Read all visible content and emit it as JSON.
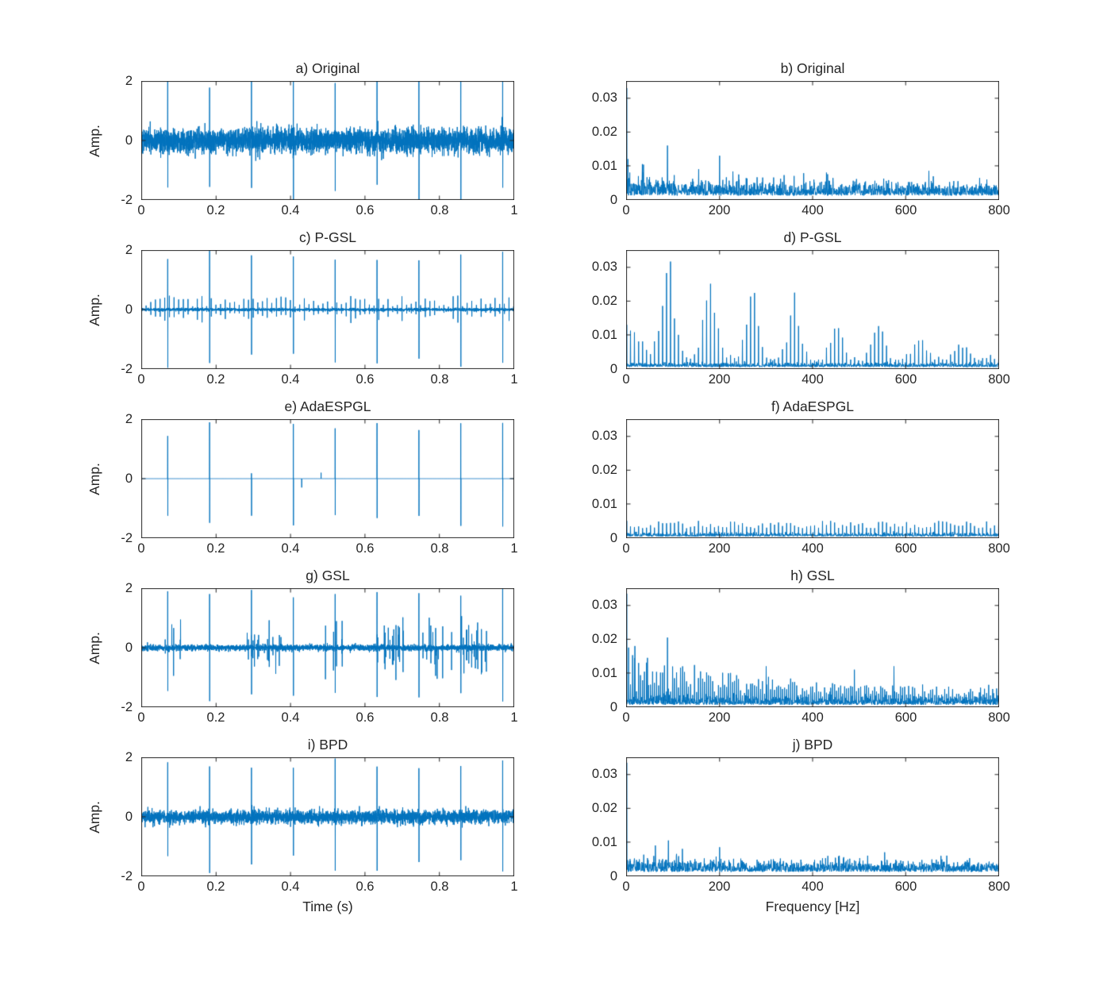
{
  "figure": {
    "bg": "#ffffff",
    "line_color": "#0072BD",
    "axis_color": "#262626",
    "tick_color": "#262626",
    "bottom_xlabel_left": "Time (s)",
    "bottom_xlabel_right": "Frequency [Hz]"
  },
  "chart_data": [
    {
      "id": "a",
      "type": "line",
      "panel": "time",
      "title": "a) Original",
      "ylabel": "Amp.",
      "xlabel": "",
      "xlim": [
        0,
        1
      ],
      "ylim": [
        -2,
        2
      ],
      "xtick_vals": [
        0,
        0.2,
        0.4,
        0.6,
        0.8,
        1
      ],
      "xtick_labels": [
        "0",
        "0.2",
        "0.4",
        "0.6",
        "0.8",
        "1"
      ],
      "ytick_vals": [
        -2,
        0,
        2
      ],
      "ytick_labels": [
        "-2",
        "0",
        "2"
      ],
      "signal": {
        "kind": "noisy-impulses",
        "seed": 101,
        "noise": 0.2,
        "period": 0.1125,
        "offset": 0.07,
        "amp_up": 2.1,
        "amp_down": 1.9
      }
    },
    {
      "id": "b",
      "type": "line",
      "panel": "freq",
      "title": "b) Original",
      "xlabel": "",
      "xlim": [
        0,
        800
      ],
      "ylim": [
        0,
        0.035
      ],
      "xtick_vals": [
        0,
        200,
        400,
        600,
        800
      ],
      "xtick_labels": [
        "0",
        "200",
        "400",
        "600",
        "800"
      ],
      "ytick_vals": [
        0,
        0.01,
        0.02,
        0.03
      ],
      "ytick_labels": [
        "0",
        "0.01",
        "0.02",
        "0.03"
      ],
      "signal": {
        "kind": "spectrum-broad",
        "seed": 102,
        "floor": 0.0016,
        "dc": 0.033,
        "peaks": [
          [
            88,
            0.016
          ],
          [
            200,
            0.013
          ],
          [
            155,
            0.009
          ],
          [
            430,
            0.008
          ],
          [
            650,
            0.0085
          ],
          [
            360,
            0.007
          ]
        ]
      }
    },
    {
      "id": "c",
      "type": "line",
      "panel": "time",
      "title": "c) P-GSL",
      "ylabel": "Amp.",
      "xlabel": "",
      "xlim": [
        0,
        1
      ],
      "ylim": [
        -2,
        2
      ],
      "xtick_vals": [
        0,
        0.2,
        0.4,
        0.6,
        0.8,
        1
      ],
      "xtick_labels": [
        "0",
        "0.2",
        "0.4",
        "0.6",
        "0.8",
        "1"
      ],
      "ytick_vals": [
        -2,
        0,
        2
      ],
      "ytick_labels": [
        "-2",
        "0",
        "2"
      ],
      "signal": {
        "kind": "comb-impulses",
        "seed": 103,
        "noise": 0.025,
        "period": 0.1125,
        "offset": 0.07,
        "amp_up": 1.95,
        "amp_down": 1.9,
        "minor_spacing": 0.0125,
        "minor_amp": 0.38
      }
    },
    {
      "id": "d",
      "type": "line",
      "panel": "freq",
      "title": "d) P-GSL",
      "xlabel": "",
      "xlim": [
        0,
        800
      ],
      "ylim": [
        0,
        0.035
      ],
      "xtick_vals": [
        0,
        200,
        400,
        600,
        800
      ],
      "xtick_labels": [
        "0",
        "200",
        "400",
        "600",
        "800"
      ],
      "ytick_vals": [
        0,
        0.01,
        0.02,
        0.03
      ],
      "ytick_labels": [
        "0",
        "0.01",
        "0.02",
        "0.03"
      ],
      "signal": {
        "kind": "spectrum-comb-env",
        "seed": 104,
        "tooth": 8.6,
        "lobe_centers": [
          90,
          180,
          270,
          360,
          450,
          540,
          630,
          720
        ],
        "lobe_amps": [
          0.0335,
          0.0295,
          0.0255,
          0.0205,
          0.0135,
          0.0125,
          0.0085,
          0.006
        ],
        "lobe_width": 40,
        "low_amp": 0.013,
        "dc": 0.013
      }
    },
    {
      "id": "e",
      "type": "line",
      "panel": "time",
      "title": "e) AdaESPGL",
      "ylabel": "Amp.",
      "xlabel": "",
      "xlim": [
        0,
        1
      ],
      "ylim": [
        -2,
        2
      ],
      "xtick_vals": [
        0,
        0.2,
        0.4,
        0.6,
        0.8,
        1
      ],
      "xtick_labels": [
        "0",
        "0.2",
        "0.4",
        "0.6",
        "0.8",
        "1"
      ],
      "ytick_vals": [
        -2,
        0,
        2
      ],
      "ytick_labels": [
        "-2",
        "0",
        "2"
      ],
      "signal": {
        "kind": "sparse-impulses",
        "seed": 105,
        "noise": 0,
        "period": 0.1125,
        "offset": 0.07,
        "amp_up": 1.9,
        "amp_down": 1.55,
        "minor": [
          [
            0.295,
            0.18
          ],
          [
            0.43,
            -0.3
          ],
          [
            0.482,
            0.2
          ]
        ]
      }
    },
    {
      "id": "f",
      "type": "line",
      "panel": "freq",
      "title": "f) AdaESPGL",
      "xlabel": "",
      "xlim": [
        0,
        800
      ],
      "ylim": [
        0,
        0.035
      ],
      "xtick_vals": [
        0,
        200,
        400,
        600,
        800
      ],
      "xtick_labels": [
        "0",
        "200",
        "400",
        "600",
        "800"
      ],
      "ytick_vals": [
        0,
        0.01,
        0.02,
        0.03
      ],
      "ytick_labels": [
        "0",
        "0.01",
        "0.02",
        "0.03"
      ],
      "signal": {
        "kind": "spectrum-comb-flat",
        "seed": 106,
        "tooth": 8.6,
        "height": 0.0028,
        "jitter": 0.0022,
        "dc": 0.005
      }
    },
    {
      "id": "g",
      "type": "line",
      "panel": "time",
      "title": "g) GSL",
      "ylabel": "Amp.",
      "xlabel": "",
      "xlim": [
        0,
        1
      ],
      "ylim": [
        -2,
        2
      ],
      "xtick_vals": [
        0,
        0.2,
        0.4,
        0.6,
        0.8,
        1
      ],
      "xtick_labels": [
        "0",
        "0.2",
        "0.4",
        "0.6",
        "0.8",
        "1"
      ],
      "ytick_vals": [
        -2,
        0,
        2
      ],
      "ytick_labels": [
        "-2",
        "0",
        "2"
      ],
      "signal": {
        "kind": "grouped-impulses",
        "seed": 107,
        "noise": 0.05,
        "period": 0.1125,
        "offset": 0.07,
        "amp_up": 2.0,
        "amp_down": 1.8,
        "clusters": 13,
        "cluster_spread": 0.055,
        "cluster_amp": 1.1
      }
    },
    {
      "id": "h",
      "type": "line",
      "panel": "freq",
      "title": "h) GSL",
      "xlabel": "",
      "xlim": [
        0,
        800
      ],
      "ylim": [
        0,
        0.035
      ],
      "xtick_vals": [
        0,
        200,
        400,
        600,
        800
      ],
      "xtick_labels": [
        "0",
        "200",
        "400",
        "600",
        "800"
      ],
      "ytick_vals": [
        0,
        0.01,
        0.02,
        0.03
      ],
      "ytick_labels": [
        "0",
        "0.01",
        "0.02",
        "0.03"
      ],
      "signal": {
        "kind": "spectrum-decay-dense",
        "seed": 108,
        "tooth": 4.3,
        "dc": 0.0335,
        "env_amp": 0.013,
        "env_decay": 260,
        "floor": 0.0012,
        "peaks": [
          [
            88,
            0.0205
          ],
          [
            18,
            0.018
          ],
          [
            45,
            0.0145
          ],
          [
            300,
            0.012
          ],
          [
            490,
            0.011
          ],
          [
            575,
            0.012
          ]
        ]
      }
    },
    {
      "id": "i",
      "type": "line",
      "panel": "time",
      "title": "i) BPD",
      "ylabel": "Amp.",
      "xlabel": "Time (s)",
      "xlim": [
        0,
        1
      ],
      "ylim": [
        -2,
        2
      ],
      "xtick_vals": [
        0,
        0.2,
        0.4,
        0.6,
        0.8,
        1
      ],
      "xtick_labels": [
        "0",
        "0.2",
        "0.4",
        "0.6",
        "0.8",
        "1"
      ],
      "ytick_vals": [
        -2,
        0,
        2
      ],
      "ytick_labels": [
        "-2",
        "0",
        "2"
      ],
      "signal": {
        "kind": "noisy-impulses",
        "seed": 109,
        "noise": 0.11,
        "period": 0.1125,
        "offset": 0.07,
        "amp_up": 1.9,
        "amp_down": 1.75
      }
    },
    {
      "id": "j",
      "type": "line",
      "panel": "freq",
      "title": "j) BPD",
      "xlabel": "Frequency [Hz]",
      "xlim": [
        0,
        800
      ],
      "ylim": [
        0,
        0.035
      ],
      "xtick_vals": [
        0,
        200,
        400,
        600,
        800
      ],
      "xtick_labels": [
        "0",
        "200",
        "400",
        "600",
        "800"
      ],
      "ytick_vals": [
        0,
        0.01,
        0.02,
        0.03
      ],
      "ytick_labels": [
        "0",
        "0.01",
        "0.02",
        "0.03"
      ],
      "signal": {
        "kind": "spectrum-noise-dc",
        "seed": 110,
        "floor": 0.0014,
        "dc": 0.0335,
        "tooth": 8.6,
        "peaks": [
          [
            90,
            0.0105
          ],
          [
            62,
            0.009
          ],
          [
            200,
            0.0085
          ],
          [
            120,
            0.008
          ],
          [
            555,
            0.007
          ]
        ]
      }
    }
  ]
}
